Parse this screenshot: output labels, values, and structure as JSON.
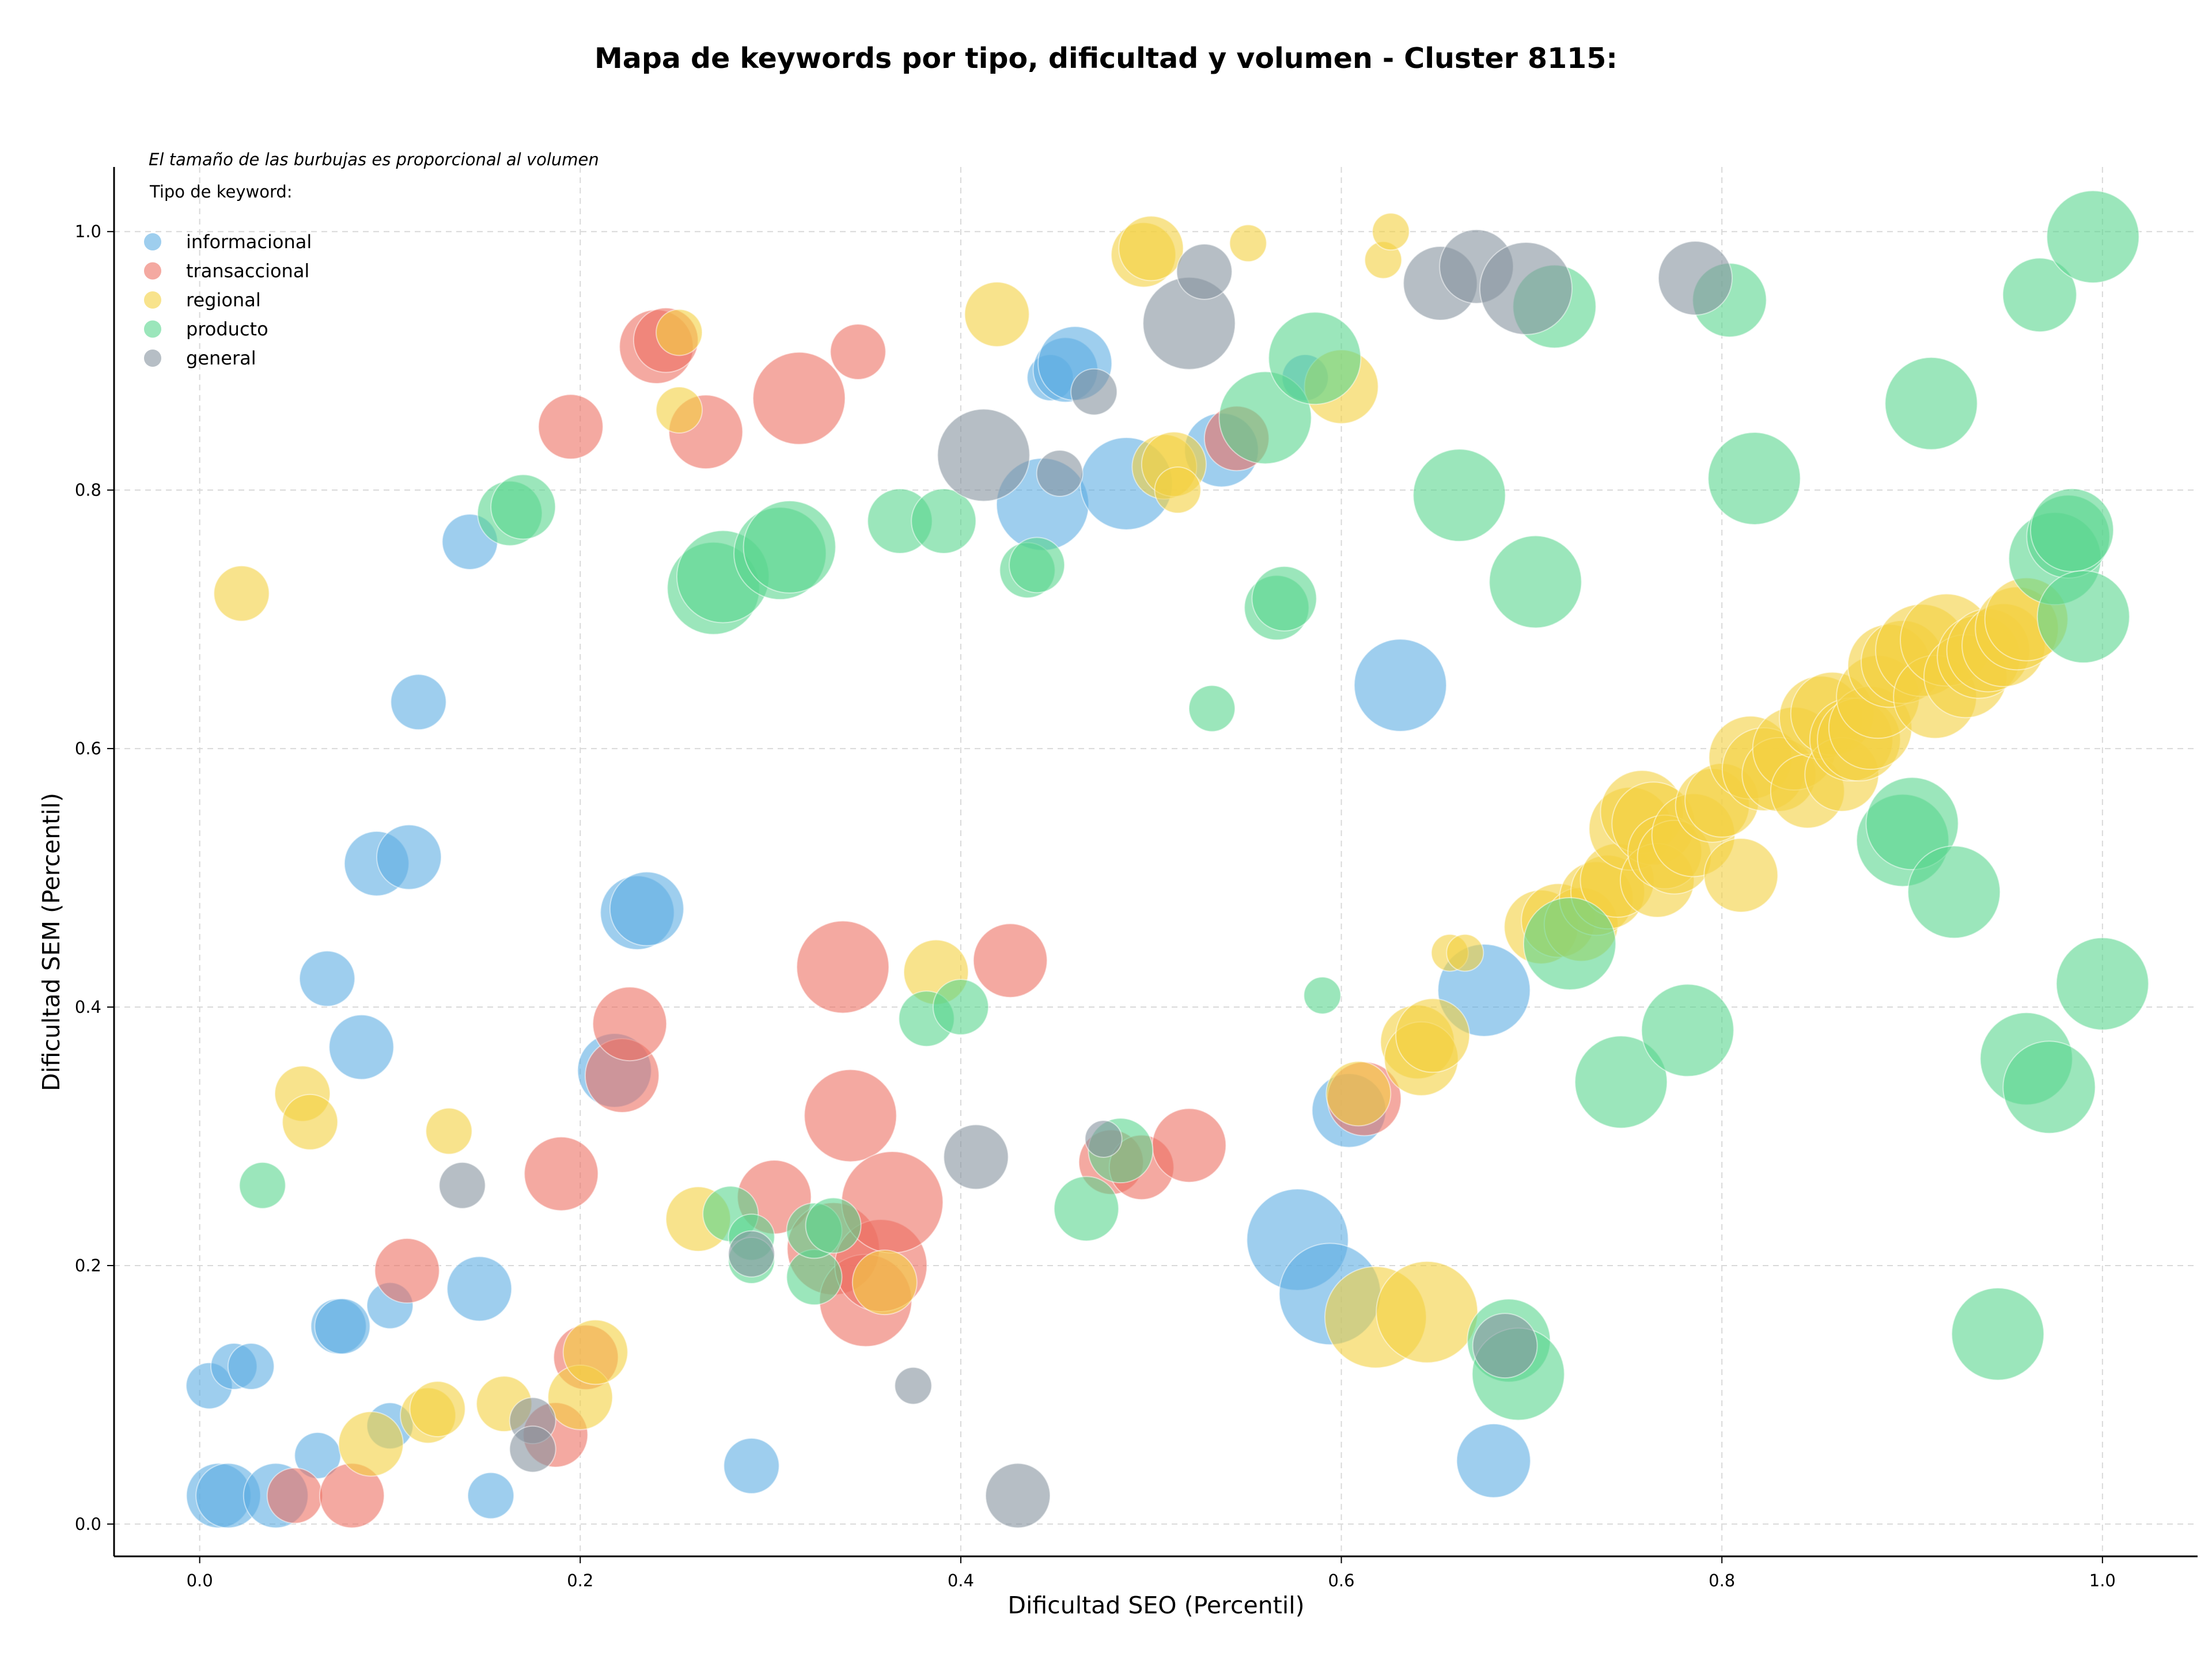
{
  "chart_data": {
    "type": "scatter",
    "title": "Mapa de keywords por tipo, dificultad y volumen - Cluster 8115:",
    "xlabel": "Dificultad SEO (Percentil)",
    "ylabel": "Dificultad SEM (Percentil)",
    "xlim": [
      -0.045,
      1.05
    ],
    "ylim": [
      -0.025,
      1.05
    ],
    "x_ticks": [
      0.0,
      0.2,
      0.4,
      0.6,
      0.8,
      1.0
    ],
    "y_ticks": [
      0.0,
      0.2,
      0.4,
      0.6,
      0.8,
      1.0
    ],
    "x_tick_labels": [
      "0.0",
      "0.2",
      "0.4",
      "0.6",
      "0.8",
      "1.0"
    ],
    "y_tick_labels": [
      "0.0",
      "0.2",
      "0.4",
      "0.6",
      "0.8",
      "1.0"
    ],
    "grid": true,
    "legend_position": "top-left",
    "annotation": "El tamaño de las burbujas es proporcional al volumen",
    "legend_title": "Tipo de keyword:",
    "series": [
      {
        "name": "informacional",
        "color": "#5dade2",
        "points": [
          [
            0.005,
            0.107,
            2.5
          ],
          [
            0.01,
            0.022,
            3.5
          ],
          [
            0.015,
            0.022,
            3.5
          ],
          [
            0.018,
            0.122,
            2.5
          ],
          [
            0.027,
            0.122,
            2.5
          ],
          [
            0.04,
            0.022,
            3.5
          ],
          [
            0.062,
            0.053,
            2.5
          ],
          [
            0.067,
            0.422,
            3
          ],
          [
            0.073,
            0.153,
            3
          ],
          [
            0.075,
            0.153,
            3
          ],
          [
            0.085,
            0.369,
            3.5
          ],
          [
            0.093,
            0.511,
            3.5
          ],
          [
            0.1,
            0.076,
            2.5
          ],
          [
            0.1,
            0.169,
            2.5
          ],
          [
            0.11,
            0.516,
            3.5
          ],
          [
            0.115,
            0.636,
            3
          ],
          [
            0.142,
            0.76,
            3
          ],
          [
            0.147,
            0.182,
            3.5
          ],
          [
            0.153,
            0.022,
            2.5
          ],
          [
            0.218,
            0.351,
            4
          ],
          [
            0.23,
            0.473,
            4
          ],
          [
            0.235,
            0.476,
            4
          ],
          [
            0.29,
            0.045,
            3
          ],
          [
            0.443,
            0.789,
            5
          ],
          [
            0.447,
            0.887,
            2.5
          ],
          [
            0.455,
            0.893,
            3.5
          ],
          [
            0.46,
            0.898,
            4
          ],
          [
            0.487,
            0.805,
            5
          ],
          [
            0.537,
            0.831,
            4
          ],
          [
            0.577,
            0.22,
            5.5
          ],
          [
            0.581,
            0.887,
            2.5
          ],
          [
            0.594,
            0.178,
            5.5
          ],
          [
            0.604,
            0.32,
            4
          ],
          [
            0.631,
            0.649,
            5
          ],
          [
            0.675,
            0.413,
            5
          ],
          [
            0.68,
            0.049,
            4
          ]
        ]
      },
      {
        "name": "transaccional",
        "color": "#ec7063",
        "points": [
          [
            0.05,
            0.022,
            3
          ],
          [
            0.08,
            0.022,
            3.5
          ],
          [
            0.109,
            0.196,
            3.5
          ],
          [
            0.187,
            0.069,
            3.5
          ],
          [
            0.19,
            0.271,
            4
          ],
          [
            0.195,
            0.849,
            3.5
          ],
          [
            0.203,
            0.129,
            3.5
          ],
          [
            0.222,
            0.347,
            4
          ],
          [
            0.226,
            0.387,
            4
          ],
          [
            0.24,
            0.911,
            4
          ],
          [
            0.245,
            0.916,
            3.5
          ],
          [
            0.266,
            0.845,
            4
          ],
          [
            0.302,
            0.253,
            4
          ],
          [
            0.315,
            0.871,
            5
          ],
          [
            0.333,
            0.213,
            5
          ],
          [
            0.338,
            0.431,
            5
          ],
          [
            0.342,
            0.316,
            5
          ],
          [
            0.346,
            0.907,
            3
          ],
          [
            0.35,
            0.173,
            5
          ],
          [
            0.358,
            0.2,
            5
          ],
          [
            0.364,
            0.249,
            5.5
          ],
          [
            0.426,
            0.436,
            4
          ],
          [
            0.479,
            0.28,
            3.5
          ],
          [
            0.495,
            0.276,
            3.5
          ],
          [
            0.52,
            0.293,
            4
          ],
          [
            0.545,
            0.84,
            3.5
          ],
          [
            0.612,
            0.329,
            4
          ]
        ]
      },
      {
        "name": "regional",
        "color": "#f4d03f",
        "points": [
          [
            0.022,
            0.72,
            3
          ],
          [
            0.054,
            0.333,
            3
          ],
          [
            0.058,
            0.311,
            3
          ],
          [
            0.09,
            0.062,
            3.5
          ],
          [
            0.12,
            0.084,
            3
          ],
          [
            0.125,
            0.089,
            3
          ],
          [
            0.131,
            0.304,
            2.5
          ],
          [
            0.16,
            0.093,
            3
          ],
          [
            0.2,
            0.098,
            3.5
          ],
          [
            0.208,
            0.133,
            3.5
          ],
          [
            0.252,
            0.862,
            2.5
          ],
          [
            0.252,
            0.922,
            2.5
          ],
          [
            0.262,
            0.236,
            3.5
          ],
          [
            0.36,
            0.187,
            3.5
          ],
          [
            0.387,
            0.427,
            3.5
          ],
          [
            0.419,
            0.936,
            3.5
          ],
          [
            0.496,
            0.982,
            3.5
          ],
          [
            0.5,
            0.987,
            3.5
          ],
          [
            0.507,
            0.818,
            3.5
          ],
          [
            0.512,
            0.82,
            3.5
          ],
          [
            0.514,
            0.8,
            2.5
          ],
          [
            0.551,
            0.991,
            2
          ],
          [
            0.6,
            0.88,
            4
          ],
          [
            0.609,
            0.333,
            3.5
          ],
          [
            0.618,
            0.16,
            5.5
          ],
          [
            0.622,
            0.978,
            2
          ],
          [
            0.626,
            1.0,
            2
          ],
          [
            0.64,
            0.373,
            4
          ],
          [
            0.642,
            0.36,
            4
          ],
          [
            0.645,
            0.164,
            5.5
          ],
          [
            0.648,
            0.378,
            4
          ],
          [
            0.657,
            0.442,
            2
          ],
          [
            0.665,
            0.442,
            2
          ],
          [
            0.705,
            0.462,
            4
          ],
          [
            0.714,
            0.467,
            4
          ],
          [
            0.726,
            0.464,
            4
          ],
          [
            0.734,
            0.484,
            4
          ],
          [
            0.74,
            0.489,
            4
          ],
          [
            0.745,
            0.498,
            4
          ],
          [
            0.752,
            0.538,
            4.5
          ],
          [
            0.758,
            0.551,
            4.5
          ],
          [
            0.764,
            0.542,
            4.5
          ],
          [
            0.766,
            0.498,
            4
          ],
          [
            0.77,
            0.52,
            4
          ],
          [
            0.775,
            0.516,
            4
          ],
          [
            0.785,
            0.533,
            4.5
          ],
          [
            0.795,
            0.556,
            4
          ],
          [
            0.8,
            0.56,
            4
          ],
          [
            0.81,
            0.502,
            4
          ],
          [
            0.815,
            0.593,
            4.5
          ],
          [
            0.822,
            0.584,
            4.5
          ],
          [
            0.83,
            0.58,
            4
          ],
          [
            0.838,
            0.6,
            4.5
          ],
          [
            0.845,
            0.567,
            4
          ],
          [
            0.852,
            0.624,
            4.5
          ],
          [
            0.858,
            0.627,
            4.5
          ],
          [
            0.863,
            0.58,
            4
          ],
          [
            0.868,
            0.607,
            4.5
          ],
          [
            0.872,
            0.607,
            4.5
          ],
          [
            0.878,
            0.616,
            4.5
          ],
          [
            0.882,
            0.64,
            4.5
          ],
          [
            0.888,
            0.664,
            4.5
          ],
          [
            0.895,
            0.667,
            4.5
          ],
          [
            0.905,
            0.676,
            5
          ],
          [
            0.912,
            0.64,
            4.5
          ],
          [
            0.918,
            0.684,
            5
          ],
          [
            0.928,
            0.656,
            4.5
          ],
          [
            0.935,
            0.671,
            4.5
          ],
          [
            0.94,
            0.676,
            4.5
          ],
          [
            0.948,
            0.68,
            4.5
          ],
          [
            0.955,
            0.693,
            4.5
          ],
          [
            0.96,
            0.7,
            4.5
          ]
        ]
      },
      {
        "name": "producto",
        "color": "#58d68d",
        "points": [
          [
            0.033,
            0.262,
            2.5
          ],
          [
            0.163,
            0.782,
            3.5
          ],
          [
            0.17,
            0.787,
            3.5
          ],
          [
            0.27,
            0.724,
            5
          ],
          [
            0.275,
            0.733,
            5
          ],
          [
            0.279,
            0.24,
            3
          ],
          [
            0.29,
            0.222,
            2.5
          ],
          [
            0.29,
            0.204,
            2.5
          ],
          [
            0.305,
            0.751,
            5
          ],
          [
            0.31,
            0.756,
            5
          ],
          [
            0.323,
            0.191,
            3
          ],
          [
            0.323,
            0.227,
            3
          ],
          [
            0.333,
            0.231,
            3
          ],
          [
            0.368,
            0.776,
            3.5
          ],
          [
            0.391,
            0.776,
            3.5
          ],
          [
            0.382,
            0.391,
            3
          ],
          [
            0.4,
            0.4,
            3
          ],
          [
            0.435,
            0.738,
            3
          ],
          [
            0.44,
            0.742,
            3
          ],
          [
            0.466,
            0.244,
            3.5
          ],
          [
            0.484,
            0.289,
            3.5
          ],
          [
            0.532,
            0.631,
            2.5
          ],
          [
            0.56,
            0.856,
            5
          ],
          [
            0.566,
            0.709,
            3.5
          ],
          [
            0.57,
            0.716,
            3.5
          ],
          [
            0.586,
            0.902,
            5
          ],
          [
            0.59,
            0.409,
            2
          ],
          [
            0.662,
            0.796,
            5
          ],
          [
            0.688,
            0.142,
            4.5
          ],
          [
            0.693,
            0.116,
            5
          ],
          [
            0.702,
            0.729,
            5
          ],
          [
            0.712,
            0.942,
            4.5
          ],
          [
            0.72,
            0.449,
            5
          ],
          [
            0.747,
            0.342,
            5
          ],
          [
            0.782,
            0.382,
            5
          ],
          [
            0.804,
            0.947,
            4
          ],
          [
            0.817,
            0.809,
            5
          ],
          [
            0.895,
            0.529,
            5
          ],
          [
            0.9,
            0.542,
            5
          ],
          [
            0.91,
            0.867,
            5
          ],
          [
            0.922,
            0.489,
            5
          ],
          [
            0.945,
            0.147,
            5
          ],
          [
            0.96,
            0.36,
            5
          ],
          [
            0.967,
            0.951,
            4
          ],
          [
            0.972,
            0.338,
            5
          ],
          [
            0.975,
            0.747,
            5
          ],
          [
            0.982,
            0.764,
            4.5
          ],
          [
            0.984,
            0.769,
            4.5
          ],
          [
            0.99,
            0.702,
            5
          ],
          [
            0.995,
            0.996,
            5
          ],
          [
            1.0,
            0.418,
            5
          ]
        ]
      },
      {
        "name": "general",
        "color": "#85929e",
        "points": [
          [
            0.138,
            0.262,
            2.5
          ],
          [
            0.175,
            0.08,
            2.5
          ],
          [
            0.175,
            0.058,
            2.5
          ],
          [
            0.29,
            0.209,
            2.5
          ],
          [
            0.375,
            0.107,
            2
          ],
          [
            0.408,
            0.284,
            3.5
          ],
          [
            0.412,
            0.827,
            5
          ],
          [
            0.43,
            0.022,
            3.5
          ],
          [
            0.452,
            0.813,
            2.5
          ],
          [
            0.47,
            0.876,
            2.5
          ],
          [
            0.475,
            0.298,
            2
          ],
          [
            0.52,
            0.929,
            5
          ],
          [
            0.528,
            0.969,
            3
          ],
          [
            0.652,
            0.96,
            4
          ],
          [
            0.671,
            0.973,
            4
          ],
          [
            0.697,
            0.956,
            5
          ],
          [
            0.786,
            0.964,
            4
          ],
          [
            0.686,
            0.138,
            3.5
          ]
        ]
      }
    ]
  }
}
